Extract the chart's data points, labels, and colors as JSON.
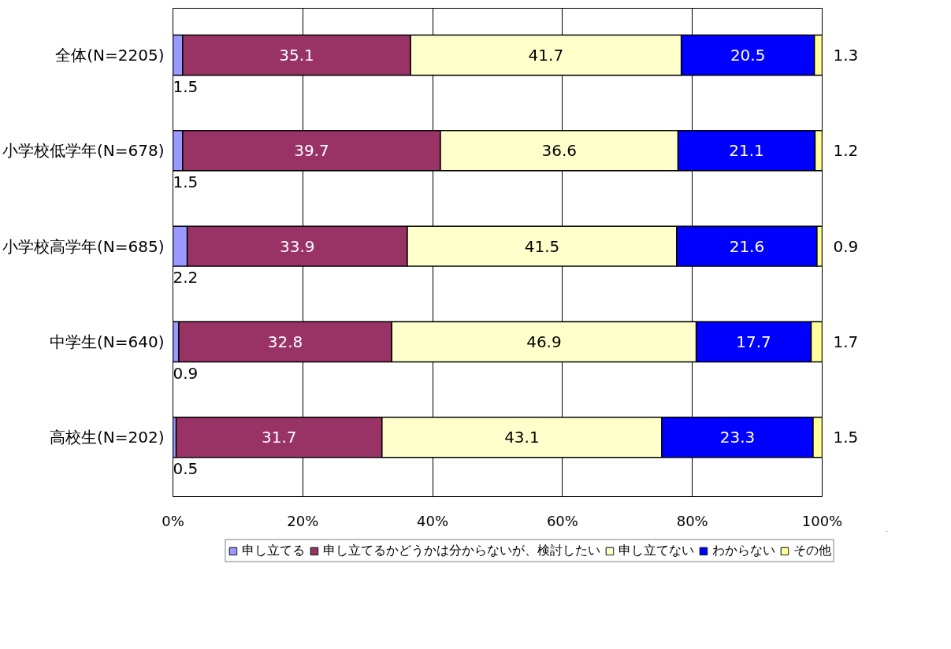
{
  "chart_data": {
    "type": "bar",
    "orientation": "horizontal",
    "stacked": true,
    "data_labels": true,
    "grid": "x",
    "legend": "bottom",
    "categories": [
      "全体(N=2205)",
      "小学校低学年(N=678)",
      "小学校高学年(N=685)",
      "中学生(N=640)",
      "高校生(N=202)"
    ],
    "series": [
      {
        "name": "申し立てる",
        "color": "#9999ff",
        "values": [
          1.5,
          1.5,
          2.2,
          0.9,
          0.5
        ]
      },
      {
        "name": "申し立てるかどうかは分からないが、検討したい",
        "color": "#993366",
        "values": [
          35.1,
          39.7,
          33.9,
          32.8,
          31.7
        ]
      },
      {
        "name": "申し立てない",
        "color": "#ffffcc",
        "values": [
          41.7,
          36.6,
          41.5,
          46.9,
          43.1
        ]
      },
      {
        "name": "わからない",
        "color": "#0000ff",
        "values": [
          20.5,
          21.1,
          21.6,
          17.7,
          23.3
        ]
      },
      {
        "name": "その他",
        "color": "#ffff99",
        "values": [
          1.3,
          1.2,
          0.9,
          1.7,
          1.5
        ]
      }
    ],
    "xlim": [
      0,
      100
    ],
    "xticks": [
      {
        "value": 0,
        "label": "0%"
      },
      {
        "value": 20,
        "label": "20%"
      },
      {
        "value": 40,
        "label": "40%"
      },
      {
        "value": 60,
        "label": "60%"
      },
      {
        "value": 80,
        "label": "80%"
      },
      {
        "value": 100,
        "label": "100%"
      }
    ]
  }
}
